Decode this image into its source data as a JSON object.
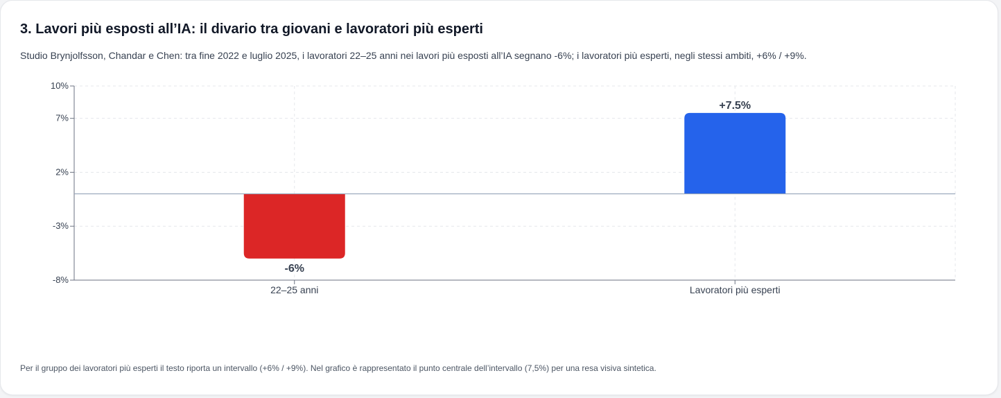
{
  "header": {
    "title": "3. Lavori più esposti all’IA: il divario tra giovani e lavoratori più esperti",
    "subtitle": "Studio Brynjolfsson, Chandar e Chen: tra fine 2022 e luglio 2025, i lavoratori 22–25 anni nei lavori più esposti all’IA segnano -6%; i lavoratori più esperti, negli stessi ambiti, +6% / +9%."
  },
  "footnote": "Per il gruppo dei lavoratori più esperti il testo riporta un intervallo (+6% / +9%). Nel grafico è rappresentato il punto centrale dell’intervallo (7,5%) per una resa visiva sintetica.",
  "colors": {
    "negative": "#dc2626",
    "positive": "#2563eb",
    "grid": "#e5e7eb",
    "axis": "#6b7280",
    "zero_line": "#94a3b8",
    "label": "#374151"
  },
  "chart_data": {
    "type": "bar",
    "categories": [
      "22–25 anni",
      "Lavoratori più esperti"
    ],
    "values": [
      -6,
      7.5
    ],
    "data_labels": [
      "-6%",
      "+7.5%"
    ],
    "bar_colors": [
      "#dc2626",
      "#2563eb"
    ],
    "ylim": [
      -8,
      10
    ],
    "yticks": [
      -8,
      -3,
      2,
      7,
      10
    ],
    "ytick_labels": [
      "-8%",
      "-3%",
      "2%",
      "7%",
      "10%"
    ],
    "grid": true,
    "legend": "none",
    "xlabel": "",
    "ylabel": ""
  }
}
